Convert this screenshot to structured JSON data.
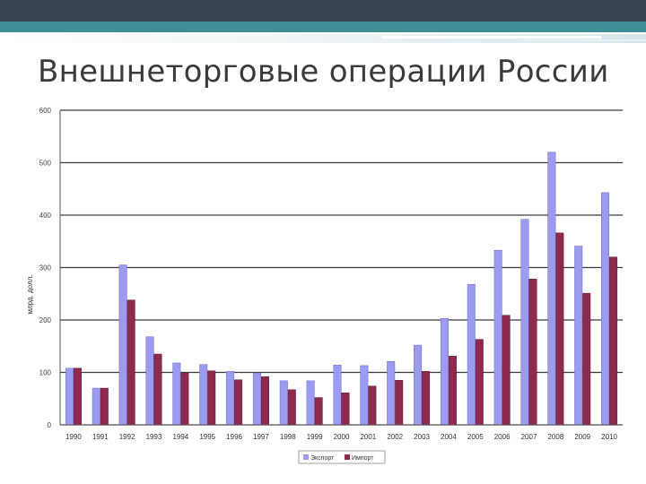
{
  "slide": {
    "title": "Внешнеторговые операции России"
  },
  "colors": {
    "export": "#9b9bf0",
    "import": "#8e2a4f",
    "grid": "#3a3a3a",
    "band_dark": "#3a4452",
    "band_teal": "#3f8e96"
  },
  "chart_data": {
    "type": "bar",
    "title": "",
    "xlabel": "",
    "ylabel": "млрд. долл.",
    "ylim": [
      0,
      600
    ],
    "yticks": [
      0,
      100,
      200,
      300,
      400,
      500,
      600
    ],
    "grid": true,
    "legend_position": "bottom",
    "categories": [
      "1990",
      "1991",
      "1992",
      "1993",
      "1994",
      "1995",
      "1996",
      "1997",
      "1998",
      "1999",
      "2000",
      "2001",
      "2002",
      "2003",
      "2004",
      "2005",
      "2006",
      "2007",
      "2008",
      "2009",
      "2010"
    ],
    "series": [
      {
        "name": "Экспорт",
        "values": [
          108,
          70,
          305,
          168,
          118,
          115,
          102,
          99,
          84,
          84,
          114,
          113,
          121,
          152,
          203,
          268,
          333,
          392,
          520,
          341,
          443
        ]
      },
      {
        "name": "Импорт",
        "values": [
          108,
          70,
          238,
          135,
          99,
          103,
          86,
          92,
          67,
          52,
          61,
          74,
          85,
          102,
          131,
          163,
          209,
          278,
          366,
          251,
          320
        ]
      }
    ]
  }
}
